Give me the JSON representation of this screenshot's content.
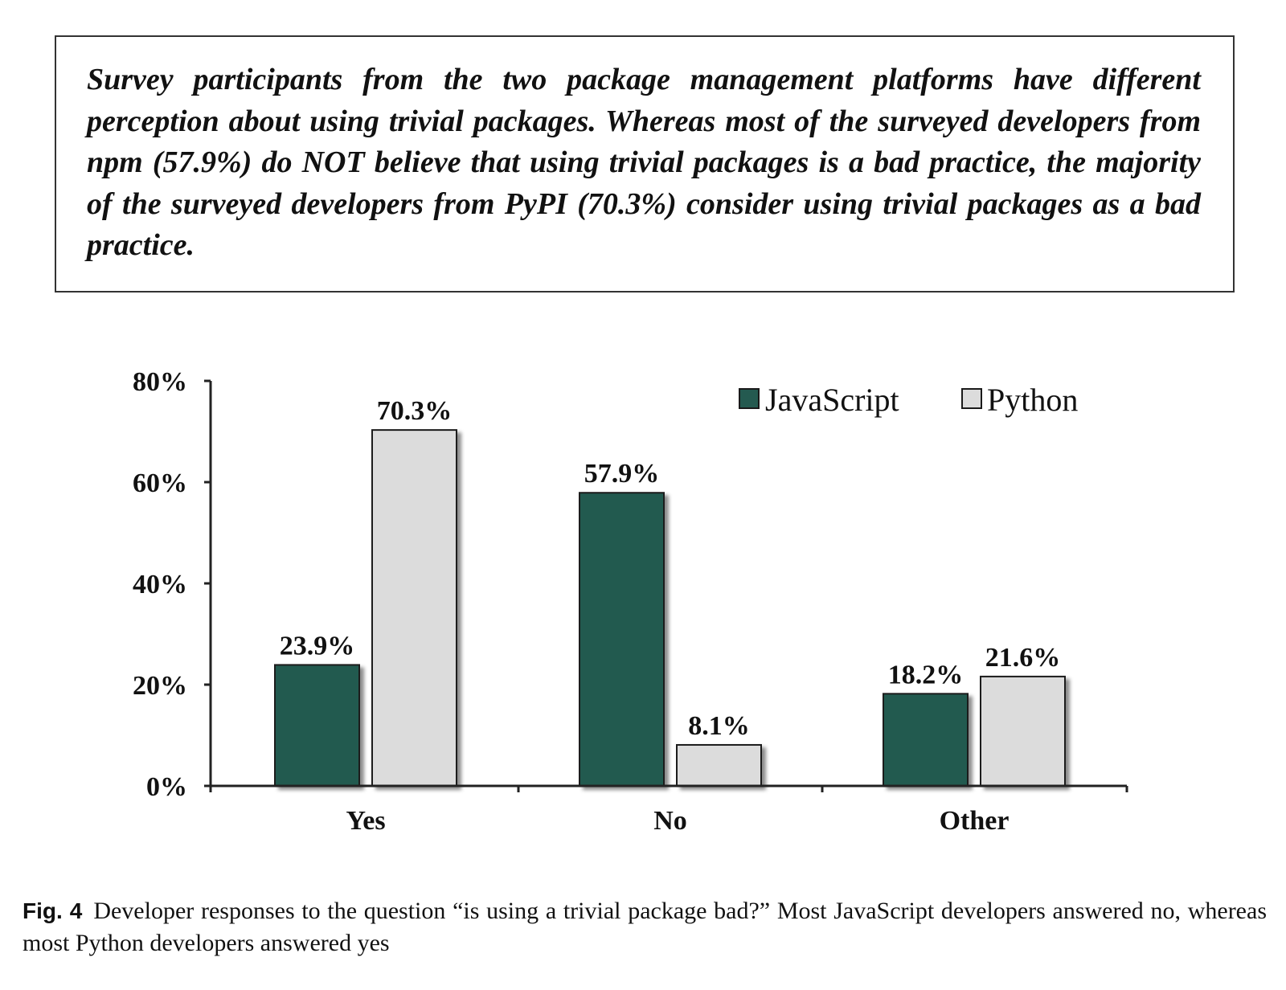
{
  "finding": {
    "text": "Survey participants from the two package management platforms have different perception about using trivial packages. Whereas most of the surveyed developers from npm (57.9%) do NOT believe that using trivial packages is a bad practice, the majority of the surveyed developers from PyPI (70.3%) consider using trivial packages as a bad practice."
  },
  "caption": {
    "label": "Fig. 4",
    "text": "Developer responses to the question “is using a trivial package bad?” Most JavaScript developers answered no, whereas most Python developers answered yes"
  },
  "chart_data": {
    "type": "bar",
    "categories": [
      "Yes",
      "No",
      "Other"
    ],
    "series": [
      {
        "name": "JavaScript",
        "values": [
          23.9,
          57.9,
          18.2
        ],
        "labels": [
          "23.9%",
          "57.9%",
          "18.2%"
        ],
        "color": "#245a50"
      },
      {
        "name": "Python",
        "values": [
          70.3,
          8.1,
          21.6
        ],
        "labels": [
          "70.3%",
          "8.1%",
          "21.6%"
        ],
        "color": "#dcdcdc"
      }
    ],
    "yticks": [
      {
        "value": 0,
        "label": "0%"
      },
      {
        "value": 20,
        "label": "20%"
      },
      {
        "value": 40,
        "label": "40%"
      },
      {
        "value": 60,
        "label": "60%"
      },
      {
        "value": 80,
        "label": "80%"
      }
    ],
    "ylim": [
      0,
      80
    ],
    "grid": false,
    "legend_position": "top-right"
  }
}
